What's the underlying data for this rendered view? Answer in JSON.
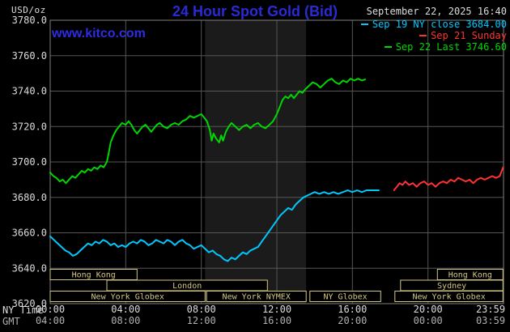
{
  "header": {
    "unit_label": "USD/oz",
    "title": "24 Hour Spot Gold (Bid)",
    "datetime": "September 22, 2025 16:40",
    "watermark": "www.kitco.com"
  },
  "legend": {
    "items": [
      {
        "label": "Sep 19 NY close 3684.00",
        "color": "#00c8ff"
      },
      {
        "label": "Sep 21 Sunday",
        "color": "#ff3232"
      },
      {
        "label": "Sep 22 Last 3746.60",
        "color": "#00d600"
      }
    ]
  },
  "axes": {
    "tz_row1": "NY Time",
    "tz_row2": "GMT"
  },
  "colors": {
    "background": "#000000",
    "title_blue": "#2a2ad6",
    "watermark_blue": "#2d2de2",
    "axis_text": "#dcdcdc",
    "gmt_text": "#b0b0b0",
    "grid": "#565656",
    "frame": "#808080",
    "session": "#d2c685",
    "band": "#1b1b1b"
  },
  "chart_data": {
    "type": "line",
    "title": "24 Hour Spot Gold (Bid)",
    "ylabel": "USD/oz",
    "ylim": [
      3620,
      3780
    ],
    "x_range": [
      0,
      24
    ],
    "grid": true,
    "y_ticks": [
      {
        "value": 3780,
        "label": "3780.0"
      },
      {
        "value": 3760,
        "label": "3760.0"
      },
      {
        "value": 3740,
        "label": "3740.0"
      },
      {
        "value": 3720,
        "label": "3720.0"
      },
      {
        "value": 3700,
        "label": "3700.0"
      },
      {
        "value": 3680,
        "label": "3680.0"
      },
      {
        "value": 3660,
        "label": "3660.0"
      },
      {
        "value": 3640,
        "label": "3640.0"
      },
      {
        "value": 3620,
        "label": "3620.0"
      }
    ],
    "x_ticks": [
      {
        "hour": 0,
        "ny": "00:00",
        "gmt": "04:00"
      },
      {
        "hour": 4,
        "ny": "04:00",
        "gmt": "08:00"
      },
      {
        "hour": 8,
        "ny": "08:00",
        "gmt": "12:00"
      },
      {
        "hour": 12,
        "ny": "12:00",
        "gmt": "16:00"
      },
      {
        "hour": 16,
        "ny": "16:00",
        "gmt": "20:00"
      },
      {
        "hour": 20,
        "ny": "20:00",
        "gmt": "00:00"
      },
      {
        "hour": 23.983,
        "ny": "23:59",
        "gmt": "03:59"
      }
    ],
    "session_band": {
      "start": 8.2,
      "end": 13.55
    },
    "sessions": [
      {
        "row": 0,
        "label": "Hong Kong",
        "start": 0.0,
        "end": 4.6
      },
      {
        "row": 0,
        "label": "Hong Kong",
        "start": 20.5,
        "end": 23.97
      },
      {
        "row": 1,
        "label": "London",
        "start": 3.0,
        "end": 11.5
      },
      {
        "row": 1,
        "label": "Sydney",
        "start": 18.55,
        "end": 23.97
      },
      {
        "row": 2,
        "label": "New York Globex",
        "start": 0.0,
        "end": 8.2
      },
      {
        "row": 2,
        "label": "New York NYMEX",
        "start": 8.28,
        "end": 13.55
      },
      {
        "row": 2,
        "label": "NY Globex",
        "start": 13.75,
        "end": 17.5
      },
      {
        "row": 2,
        "label": "New York Globex",
        "start": 18.25,
        "end": 23.97
      }
    ],
    "series": [
      {
        "name": "Sep 19 NY close",
        "color": "#00c8ff",
        "points": [
          [
            0.0,
            3658
          ],
          [
            0.2,
            3656
          ],
          [
            0.4,
            3654
          ],
          [
            0.6,
            3652
          ],
          [
            0.8,
            3650
          ],
          [
            1.0,
            3649
          ],
          [
            1.2,
            3647
          ],
          [
            1.4,
            3648
          ],
          [
            1.6,
            3650
          ],
          [
            1.8,
            3652
          ],
          [
            2.0,
            3654
          ],
          [
            2.2,
            3653
          ],
          [
            2.4,
            3655
          ],
          [
            2.6,
            3654
          ],
          [
            2.8,
            3656
          ],
          [
            3.0,
            3655
          ],
          [
            3.2,
            3653
          ],
          [
            3.4,
            3654
          ],
          [
            3.6,
            3652
          ],
          [
            3.8,
            3653
          ],
          [
            4.0,
            3652
          ],
          [
            4.2,
            3654
          ],
          [
            4.4,
            3655
          ],
          [
            4.6,
            3654
          ],
          [
            4.8,
            3656
          ],
          [
            5.0,
            3655
          ],
          [
            5.2,
            3653
          ],
          [
            5.4,
            3654
          ],
          [
            5.6,
            3656
          ],
          [
            5.8,
            3655
          ],
          [
            6.0,
            3654
          ],
          [
            6.2,
            3656
          ],
          [
            6.4,
            3655
          ],
          [
            6.6,
            3653
          ],
          [
            6.8,
            3655
          ],
          [
            7.0,
            3656
          ],
          [
            7.2,
            3654
          ],
          [
            7.4,
            3653
          ],
          [
            7.6,
            3651
          ],
          [
            7.8,
            3652
          ],
          [
            8.0,
            3653
          ],
          [
            8.2,
            3651
          ],
          [
            8.4,
            3649
          ],
          [
            8.6,
            3650
          ],
          [
            8.8,
            3648
          ],
          [
            9.0,
            3647
          ],
          [
            9.2,
            3645
          ],
          [
            9.4,
            3644
          ],
          [
            9.6,
            3646
          ],
          [
            9.8,
            3645
          ],
          [
            10.0,
            3647
          ],
          [
            10.2,
            3649
          ],
          [
            10.4,
            3648
          ],
          [
            10.6,
            3650
          ],
          [
            10.8,
            3651
          ],
          [
            11.0,
            3652
          ],
          [
            11.2,
            3655
          ],
          [
            11.4,
            3658
          ],
          [
            11.6,
            3661
          ],
          [
            11.8,
            3664
          ],
          [
            12.0,
            3667
          ],
          [
            12.2,
            3670
          ],
          [
            12.4,
            3672
          ],
          [
            12.6,
            3674
          ],
          [
            12.8,
            3673
          ],
          [
            13.0,
            3676
          ],
          [
            13.2,
            3678
          ],
          [
            13.4,
            3680
          ],
          [
            13.6,
            3681
          ],
          [
            13.8,
            3682
          ],
          [
            14.0,
            3683
          ],
          [
            14.25,
            3682
          ],
          [
            14.5,
            3683
          ],
          [
            14.75,
            3682
          ],
          [
            15.0,
            3683
          ],
          [
            15.25,
            3682
          ],
          [
            15.5,
            3683
          ],
          [
            15.75,
            3684
          ],
          [
            16.0,
            3683
          ],
          [
            16.25,
            3684
          ],
          [
            16.5,
            3683
          ],
          [
            16.75,
            3684
          ],
          [
            17.0,
            3684
          ],
          [
            17.4,
            3684
          ]
        ]
      },
      {
        "name": "Sep 21 Sunday",
        "color": "#ff3232",
        "points": [
          [
            18.2,
            3684
          ],
          [
            18.35,
            3686
          ],
          [
            18.5,
            3688
          ],
          [
            18.65,
            3687
          ],
          [
            18.8,
            3689
          ],
          [
            19.0,
            3687
          ],
          [
            19.2,
            3688
          ],
          [
            19.4,
            3686
          ],
          [
            19.6,
            3688
          ],
          [
            19.8,
            3689
          ],
          [
            20.0,
            3687
          ],
          [
            20.2,
            3688
          ],
          [
            20.4,
            3686
          ],
          [
            20.6,
            3688
          ],
          [
            20.8,
            3689
          ],
          [
            21.0,
            3688
          ],
          [
            21.2,
            3690
          ],
          [
            21.4,
            3689
          ],
          [
            21.6,
            3691
          ],
          [
            21.8,
            3690
          ],
          [
            22.0,
            3689
          ],
          [
            22.2,
            3690
          ],
          [
            22.4,
            3688
          ],
          [
            22.6,
            3690
          ],
          [
            22.8,
            3691
          ],
          [
            23.0,
            3690
          ],
          [
            23.2,
            3691
          ],
          [
            23.4,
            3692
          ],
          [
            23.6,
            3691
          ],
          [
            23.8,
            3692
          ],
          [
            23.98,
            3697
          ]
        ]
      },
      {
        "name": "Sep 22 Last",
        "color": "#00d600",
        "points": [
          [
            0.0,
            3694
          ],
          [
            0.17,
            3692
          ],
          [
            0.33,
            3691
          ],
          [
            0.5,
            3689
          ],
          [
            0.67,
            3690
          ],
          [
            0.83,
            3688
          ],
          [
            1.0,
            3690
          ],
          [
            1.17,
            3692
          ],
          [
            1.33,
            3691
          ],
          [
            1.5,
            3693
          ],
          [
            1.67,
            3695
          ],
          [
            1.83,
            3694
          ],
          [
            2.0,
            3696
          ],
          [
            2.17,
            3695
          ],
          [
            2.33,
            3697
          ],
          [
            2.5,
            3696
          ],
          [
            2.67,
            3698
          ],
          [
            2.83,
            3697
          ],
          [
            3.0,
            3700
          ],
          [
            3.1,
            3705
          ],
          [
            3.2,
            3711
          ],
          [
            3.35,
            3715
          ],
          [
            3.5,
            3718
          ],
          [
            3.65,
            3720
          ],
          [
            3.8,
            3722
          ],
          [
            4.0,
            3721
          ],
          [
            4.15,
            3723
          ],
          [
            4.3,
            3721
          ],
          [
            4.45,
            3718
          ],
          [
            4.6,
            3716
          ],
          [
            4.75,
            3718
          ],
          [
            4.9,
            3720
          ],
          [
            5.05,
            3721
          ],
          [
            5.2,
            3719
          ],
          [
            5.35,
            3717
          ],
          [
            5.5,
            3719
          ],
          [
            5.65,
            3721
          ],
          [
            5.8,
            3722
          ],
          [
            6.0,
            3720
          ],
          [
            6.2,
            3719
          ],
          [
            6.4,
            3721
          ],
          [
            6.6,
            3722
          ],
          [
            6.8,
            3721
          ],
          [
            7.0,
            3723
          ],
          [
            7.2,
            3724
          ],
          [
            7.4,
            3726
          ],
          [
            7.6,
            3725
          ],
          [
            7.8,
            3726
          ],
          [
            8.0,
            3727
          ],
          [
            8.15,
            3725
          ],
          [
            8.3,
            3723
          ],
          [
            8.45,
            3718
          ],
          [
            8.55,
            3712
          ],
          [
            8.65,
            3716
          ],
          [
            8.8,
            3713
          ],
          [
            8.95,
            3711
          ],
          [
            9.05,
            3715
          ],
          [
            9.15,
            3712
          ],
          [
            9.3,
            3717
          ],
          [
            9.45,
            3720
          ],
          [
            9.6,
            3722
          ],
          [
            9.8,
            3720
          ],
          [
            10.0,
            3718
          ],
          [
            10.2,
            3720
          ],
          [
            10.4,
            3721
          ],
          [
            10.6,
            3719
          ],
          [
            10.8,
            3721
          ],
          [
            11.0,
            3722
          ],
          [
            11.2,
            3720
          ],
          [
            11.4,
            3719
          ],
          [
            11.6,
            3721
          ],
          [
            11.8,
            3723
          ],
          [
            12.0,
            3727
          ],
          [
            12.15,
            3731
          ],
          [
            12.3,
            3735
          ],
          [
            12.45,
            3737
          ],
          [
            12.6,
            3736
          ],
          [
            12.75,
            3738
          ],
          [
            12.9,
            3736
          ],
          [
            13.05,
            3738
          ],
          [
            13.2,
            3740
          ],
          [
            13.35,
            3739
          ],
          [
            13.5,
            3741
          ],
          [
            13.7,
            3743
          ],
          [
            13.9,
            3745
          ],
          [
            14.1,
            3744
          ],
          [
            14.3,
            3742
          ],
          [
            14.5,
            3744
          ],
          [
            14.7,
            3746
          ],
          [
            14.9,
            3747
          ],
          [
            15.1,
            3745
          ],
          [
            15.3,
            3744
          ],
          [
            15.5,
            3746
          ],
          [
            15.7,
            3745
          ],
          [
            15.9,
            3747
          ],
          [
            16.1,
            3746
          ],
          [
            16.3,
            3747
          ],
          [
            16.5,
            3746
          ],
          [
            16.67,
            3746.6
          ]
        ]
      }
    ]
  }
}
